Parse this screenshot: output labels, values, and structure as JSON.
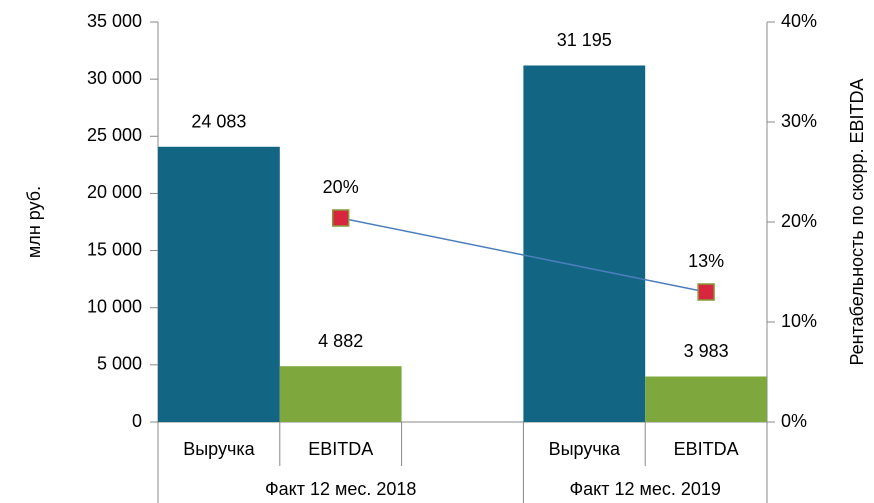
{
  "chart_data": {
    "type": "bar_line",
    "ylabel": "млн руб.",
    "y2label": "Рентабельность по скорр. EBITDA",
    "categories": [
      "Факт 12 мес. 2018",
      "Факт 12 мес. 2019"
    ],
    "series": [
      {
        "name": "Выручка",
        "color": "#136683",
        "values": [
          24083,
          31195
        ],
        "value_labels": [
          "24 083",
          "31 195"
        ]
      },
      {
        "name": "EBITDA",
        "color": "#7ea83e",
        "values": [
          4882,
          3983
        ],
        "value_labels": [
          "4 882",
          "3 983"
        ]
      },
      {
        "type": "line",
        "axis": "y2",
        "color": "#4a7ebb",
        "marker_color": "#d7263d",
        "values": [
          20.4,
          13.0
        ],
        "value_labels": [
          "20%",
          "13%"
        ]
      }
    ],
    "ylim": [
      0,
      35000
    ],
    "yticks": [
      0,
      {
        "value": 5000,
        "label": "5 000"
      },
      {
        "value": 10000,
        "label": "10 000"
      },
      {
        "value": 15000,
        "label": "15 000"
      },
      {
        "value": 20000,
        "label": "20 000"
      },
      {
        "value": 25000,
        "label": "25 000"
      },
      {
        "value": 30000,
        "label": "30 000"
      },
      {
        "value": 35000,
        "label": "35 000"
      }
    ],
    "y2lim": [
      0,
      40
    ],
    "y2ticks": [
      {
        "value": 0,
        "label": "0%"
      },
      {
        "value": 10,
        "label": "10%"
      },
      {
        "value": 20,
        "label": "20%"
      },
      {
        "value": 30,
        "label": "30%"
      },
      {
        "value": 40,
        "label": "40%"
      }
    ]
  }
}
